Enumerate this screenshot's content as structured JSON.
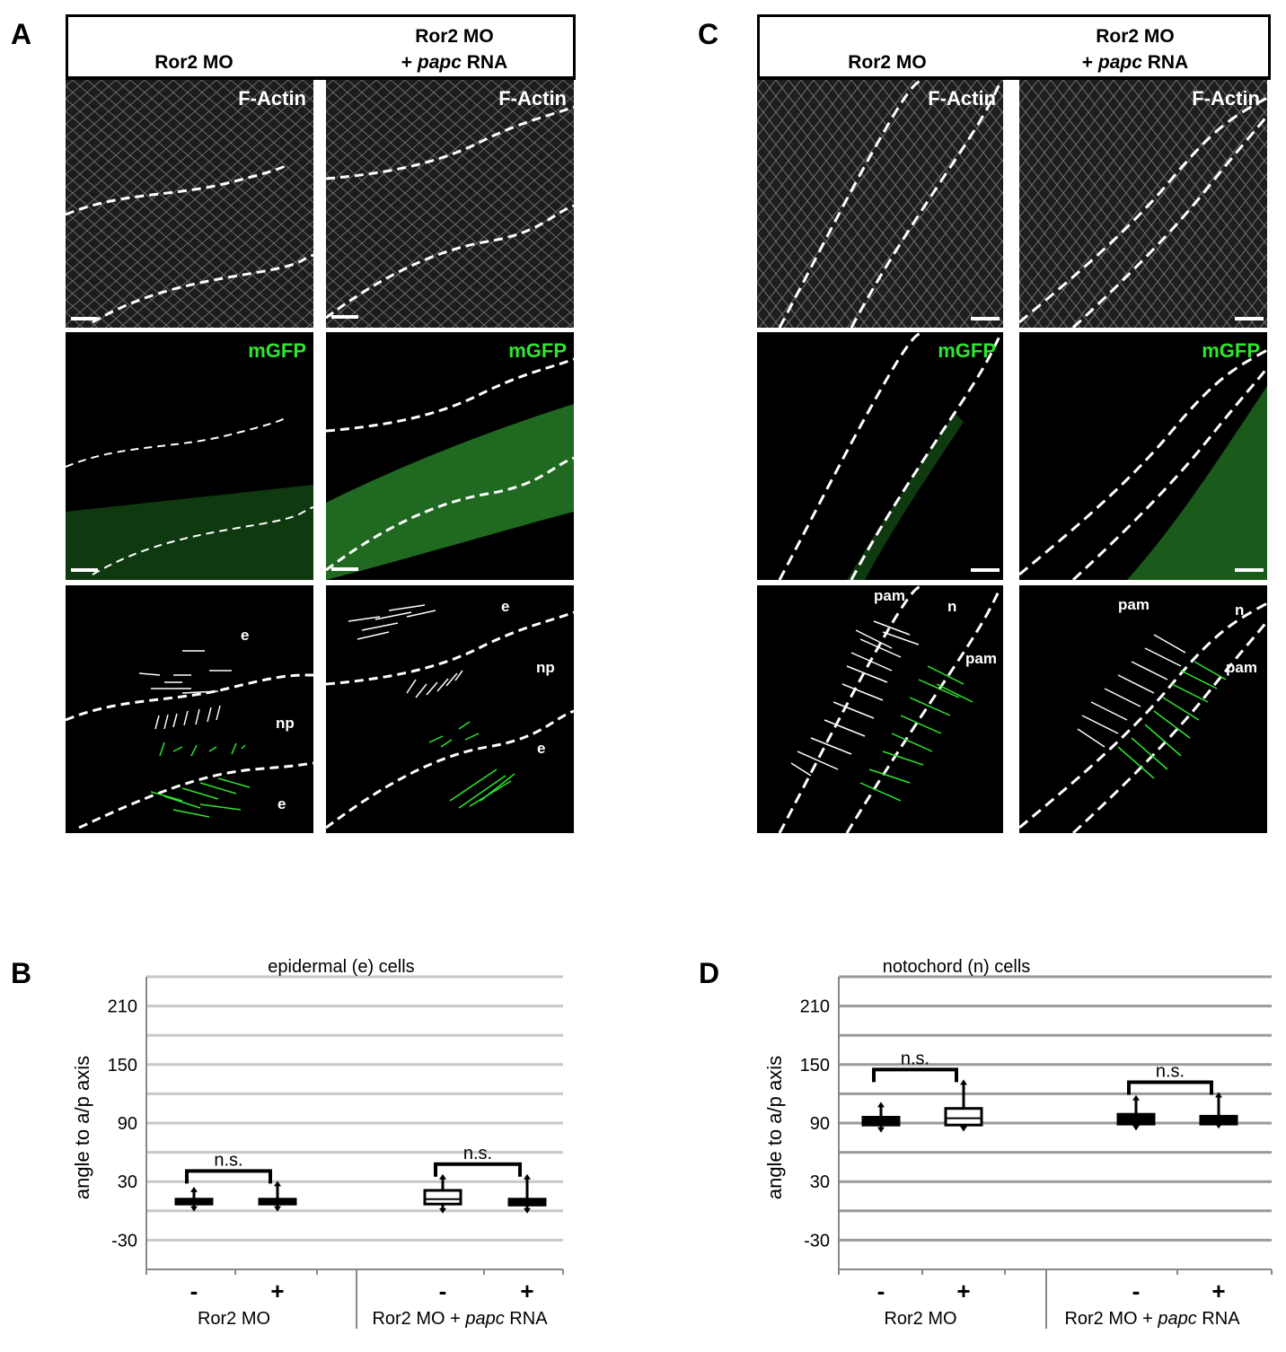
{
  "panels": {
    "A": {
      "letter": "A"
    },
    "B": {
      "letter": "B"
    },
    "C": {
      "letter": "C"
    },
    "D": {
      "letter": "D"
    }
  },
  "headers": {
    "col1": "Ror2 MO",
    "col2_line1": "Ror2 MO",
    "col2_line2_prefix": "+ ",
    "col2_line2_italic": "papc",
    "col2_line2_suffix": " RNA"
  },
  "tiles": {
    "factin": "F-Actin",
    "mgfp": "mGFP"
  },
  "regions_A": {
    "left": {
      "e_top": "e",
      "np": "np",
      "e_bottom": "e"
    },
    "right": {
      "e_top": "e",
      "np": "np",
      "e_bottom": "e"
    }
  },
  "regions_C": {
    "left": {
      "pam_left": "pam",
      "n": "n",
      "pam_right": "pam"
    },
    "right": {
      "pam_left": "pam",
      "n": "n",
      "pam_right": "pam"
    }
  },
  "colors": {
    "green": "#2ee62e",
    "grid": "#c0c0c0",
    "grid_dark": "#999999"
  },
  "chart_data": [
    {
      "panel": "B",
      "type": "box",
      "title": "epidermal (e) cells",
      "ylabel": "angle to a/p axis",
      "yticks": [
        210,
        150,
        90,
        30,
        -30
      ],
      "ylim": [
        -60,
        240
      ],
      "categories": [
        "-",
        "+",
        "-",
        "+"
      ],
      "groups": [
        {
          "label": "Ror2 MO",
          "label_italic": "",
          "label_suffix": ""
        },
        {
          "label": "Ror2 MO + ",
          "label_italic": "papc",
          "label_suffix": " RNA"
        }
      ],
      "boxes": [
        {
          "min": 2,
          "q1": 7,
          "median": 9,
          "q3": 12,
          "max": 22,
          "filled": true
        },
        {
          "min": 2,
          "q1": 7,
          "median": 9,
          "q3": 12,
          "max": 28,
          "filled": true
        },
        {
          "min": 0,
          "q1": 7,
          "median": 12,
          "q3": 21,
          "max": 35,
          "filled": false
        },
        {
          "min": 0,
          "q1": 6,
          "median": 9,
          "q3": 12,
          "max": 35,
          "filled": true
        }
      ],
      "annotations": [
        "n.s.",
        "n.s."
      ]
    },
    {
      "panel": "D",
      "type": "box",
      "title": "notochord (n) cells",
      "ylabel": "angle to a/p axis",
      "yticks": [
        210,
        150,
        90,
        30,
        -30
      ],
      "ylim": [
        -60,
        240
      ],
      "categories": [
        "-",
        "+",
        "-",
        "+"
      ],
      "groups": [
        {
          "label": "Ror2 MO",
          "label_italic": "",
          "label_suffix": ""
        },
        {
          "label": "Ror2 MO + ",
          "label_italic": "papc",
          "label_suffix": " RNA"
        }
      ],
      "boxes": [
        {
          "min": 83,
          "q1": 88,
          "median": 91,
          "q3": 96,
          "max": 109,
          "filled": true
        },
        {
          "min": 84,
          "q1": 88,
          "median": 95,
          "q3": 105,
          "max": 132,
          "filled": false
        },
        {
          "min": 85,
          "q1": 89,
          "median": 93,
          "q3": 99,
          "max": 116,
          "filled": true
        },
        {
          "min": 87,
          "q1": 89,
          "median": 93,
          "q3": 97,
          "max": 119,
          "filled": true
        }
      ],
      "annotations": [
        "n.s.",
        "n.s."
      ]
    }
  ]
}
